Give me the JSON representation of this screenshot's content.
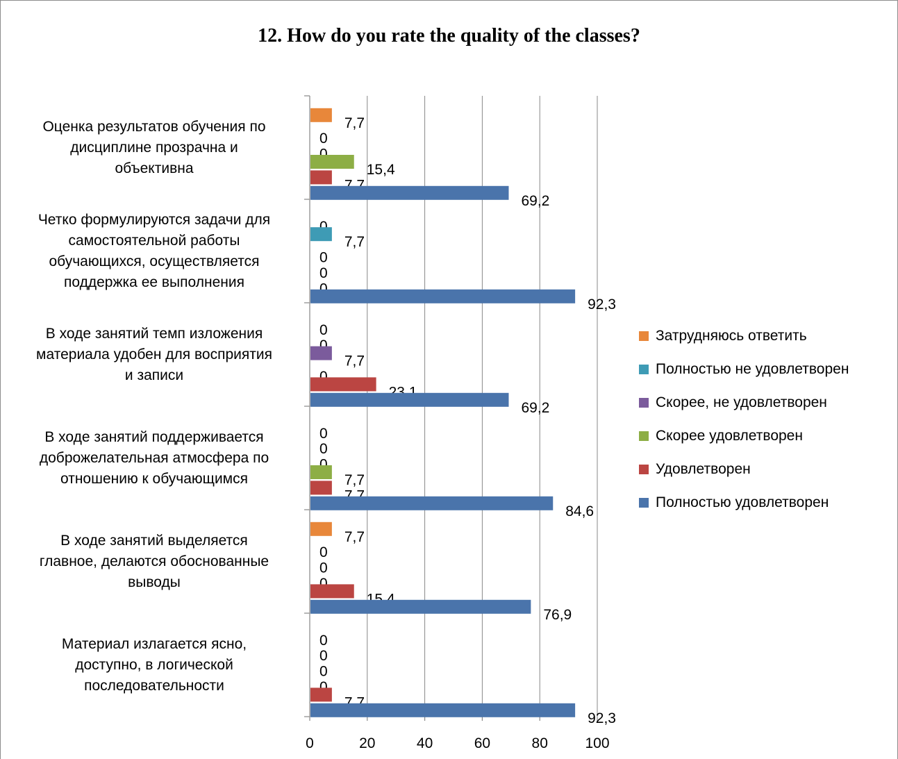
{
  "chart_data": {
    "type": "bar",
    "orientation": "horizontal",
    "title": "12. How do you rate the quality of the classes?",
    "categories": [
      "Оценка результатов обучения по дисциплине прозрачна и объективна",
      "Четко формулируются задачи для самостоятельной работы обучающихся, осуществляется поддержка ее выполнения",
      "В ходе занятий темп изложения материала удобен для восприятия и записи",
      "В ходе занятий поддерживается доброжелательная атмосфера по отношению к обучающимся",
      "В ходе занятий выделяется главное, делаются обоснованные выводы",
      "Материал излагается ясно, доступно, в логической последовательности"
    ],
    "category_lines": [
      [
        "Оценка результатов обучения по",
        "дисциплине прозрачна и",
        "объективна"
      ],
      [
        "Четко формулируются задачи для",
        "самостоятельной работы",
        "обучающихся, осуществляется",
        "поддержка ее выполнения"
      ],
      [
        "В ходе занятий темп изложения",
        "материала удобен для восприятия",
        "и записи"
      ],
      [
        "В ходе занятий поддерживается",
        "доброжелательная атмосфера по",
        "отношению к обучающимся"
      ],
      [
        "В ходе занятий выделяется",
        "главное, делаются обоснованные",
        "выводы"
      ],
      [
        "Материал излагается ясно,",
        "доступно, в логической",
        "последовательности"
      ]
    ],
    "series": [
      {
        "name": "Затрудняюсь ответить",
        "color": "#E8873A",
        "values": [
          7.7,
          0,
          0,
          0,
          7.7,
          0
        ],
        "labels": [
          "7,7",
          "0",
          "0",
          "0",
          "7,7",
          "0"
        ]
      },
      {
        "name": "Полностью не удовлетворен",
        "color": "#3E9BB5",
        "values": [
          0,
          7.7,
          0,
          0,
          0,
          0
        ],
        "labels": [
          "0",
          "7,7",
          "0",
          "0",
          "0",
          "0"
        ]
      },
      {
        "name": "Скорее, не удовлетворен",
        "color": "#7B5B9C",
        "values": [
          0,
          0,
          7.7,
          0,
          0,
          0
        ],
        "labels": [
          "0",
          "0",
          "7,7",
          "0",
          "0",
          "0"
        ]
      },
      {
        "name": "Скорее удовлетворен",
        "color": "#8DAE45",
        "values": [
          15.4,
          0,
          0,
          7.7,
          0,
          0
        ],
        "labels": [
          "15,4",
          "0",
          "0",
          "7,7",
          "0",
          "0"
        ]
      },
      {
        "name": "Удовлетворен",
        "color": "#BB4542",
        "values": [
          7.7,
          0,
          23.1,
          7.7,
          15.4,
          7.7
        ],
        "labels": [
          "7,7",
          "0",
          "23,1",
          "7,7",
          "15,4",
          "7,7"
        ]
      },
      {
        "name": "Полностью удовлетворен",
        "color": "#4A74AB",
        "values": [
          69.2,
          92.3,
          69.2,
          84.6,
          76.9,
          92.3
        ],
        "labels": [
          "69,2",
          "92,3",
          "69,2",
          "84,6",
          "76,9",
          "92,3"
        ]
      }
    ],
    "xlim": [
      0,
      100
    ],
    "x_ticks": [
      "0",
      "20",
      "40",
      "60",
      "80",
      "100"
    ],
    "grid": true,
    "legend_position": "right",
    "legend_order": [
      "Затрудняюсь ответить",
      "Полностью не удовлетворен",
      "Скорее, не удовлетворен",
      "Скорее удовлетворен",
      "Удовлетворен",
      "Полностью удовлетворен"
    ]
  }
}
